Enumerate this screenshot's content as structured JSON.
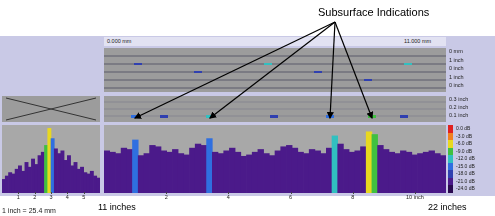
{
  "annotation": {
    "title": "Subsurface Indications"
  },
  "header": {
    "left": "0.000 mm",
    "right": "11.000 mm"
  },
  "top_panel": {
    "labels": [
      "0 mm",
      "1 inch",
      "0 inch",
      "1 inch",
      "0 inch"
    ]
  },
  "middle_panel": {
    "labels": [
      "0.3 inch",
      "0.2 inch",
      "0.1 inch"
    ]
  },
  "color_scale": {
    "labels": [
      "0.0 dB",
      "-3.0 dB",
      "-6.0 dB",
      "-9.0 dB",
      "-12.0 dB",
      "-15.0 dB",
      "-18.0 dB",
      "-21.0 dB",
      "-24.0 dB"
    ],
    "colors": [
      "#e02020",
      "#f08020",
      "#e8d820",
      "#40c040",
      "#31c0c0",
      "#2f6fe0",
      "#3040b0",
      "#4b1a8a",
      "#2a0a50"
    ]
  },
  "chart_data": [
    {
      "type": "bar",
      "xlim": [
        0,
        6
      ],
      "xticks": [
        1,
        2,
        3,
        4,
        5
      ],
      "ylim": [
        0,
        100
      ],
      "tick_labels": false,
      "grid": false,
      "values": [
        20,
        25,
        30,
        28,
        35,
        40,
        32,
        45,
        38,
        50,
        42,
        55,
        60,
        70,
        95,
        80,
        65,
        58,
        62,
        48,
        55,
        40,
        45,
        35,
        38,
        30,
        28,
        32,
        25,
        22
      ],
      "colors": [
        "#4b1a8a",
        "#4b1a8a",
        "#4b1a8a",
        "#4b1a8a",
        "#4b1a8a",
        "#4b1a8a",
        "#4b1a8a",
        "#4b1a8a",
        "#4b1a8a",
        "#4b1a8a",
        "#4b1a8a",
        "#4b1a8a",
        "#4b1a8a",
        "#40c040",
        "#e8d820",
        "#2f6fe0",
        "#4b1a8a",
        "#4b1a8a",
        "#4b1a8a",
        "#4b1a8a",
        "#4b1a8a",
        "#4b1a8a",
        "#4b1a8a",
        "#4b1a8a",
        "#4b1a8a",
        "#4b1a8a",
        "#4b1a8a",
        "#4b1a8a",
        "#4b1a8a",
        "#4b1a8a"
      ]
    },
    {
      "type": "bar",
      "xlim": [
        0,
        11
      ],
      "xticks": [
        2,
        4,
        6,
        8,
        {
          "value": 10,
          "label": "10 inch"
        }
      ],
      "ylim": [
        0,
        100
      ],
      "tick_labels": false,
      "grid": false,
      "values": [
        62,
        60,
        58,
        66,
        64,
        78,
        55,
        58,
        70,
        68,
        62,
        60,
        64,
        58,
        56,
        66,
        72,
        70,
        80,
        60,
        58,
        62,
        66,
        60,
        54,
        56,
        60,
        64,
        58,
        55,
        62,
        68,
        70,
        66,
        60,
        58,
        64,
        62,
        58,
        66,
        84,
        72,
        64,
        60,
        62,
        68,
        90,
        86,
        70,
        64,
        60,
        58,
        62,
        60,
        56,
        58,
        60,
        62,
        58,
        55
      ],
      "colors": [
        "#4b1a8a",
        "#4b1a8a",
        "#4b1a8a",
        "#4b1a8a",
        "#4b1a8a",
        "#2f6fe0",
        "#4b1a8a",
        "#4b1a8a",
        "#4b1a8a",
        "#4b1a8a",
        "#4b1a8a",
        "#4b1a8a",
        "#4b1a8a",
        "#4b1a8a",
        "#4b1a8a",
        "#4b1a8a",
        "#4b1a8a",
        "#4b1a8a",
        "#2f6fe0",
        "#4b1a8a",
        "#4b1a8a",
        "#4b1a8a",
        "#4b1a8a",
        "#4b1a8a",
        "#4b1a8a",
        "#4b1a8a",
        "#4b1a8a",
        "#4b1a8a",
        "#4b1a8a",
        "#4b1a8a",
        "#4b1a8a",
        "#4b1a8a",
        "#4b1a8a",
        "#4b1a8a",
        "#4b1a8a",
        "#4b1a8a",
        "#4b1a8a",
        "#4b1a8a",
        "#4b1a8a",
        "#4b1a8a",
        "#31c0c0",
        "#4b1a8a",
        "#4b1a8a",
        "#4b1a8a",
        "#4b1a8a",
        "#4b1a8a",
        "#e8d820",
        "#40c040",
        "#4b1a8a",
        "#4b1a8a",
        "#4b1a8a",
        "#4b1a8a",
        "#4b1a8a",
        "#4b1a8a",
        "#4b1a8a",
        "#4b1a8a",
        "#4b1a8a",
        "#4b1a8a",
        "#4b1a8a",
        "#4b1a8a"
      ]
    }
  ],
  "footer": {
    "start": "11 inches",
    "end": "22 inches",
    "note": "1 inch = 25.4 mm"
  }
}
